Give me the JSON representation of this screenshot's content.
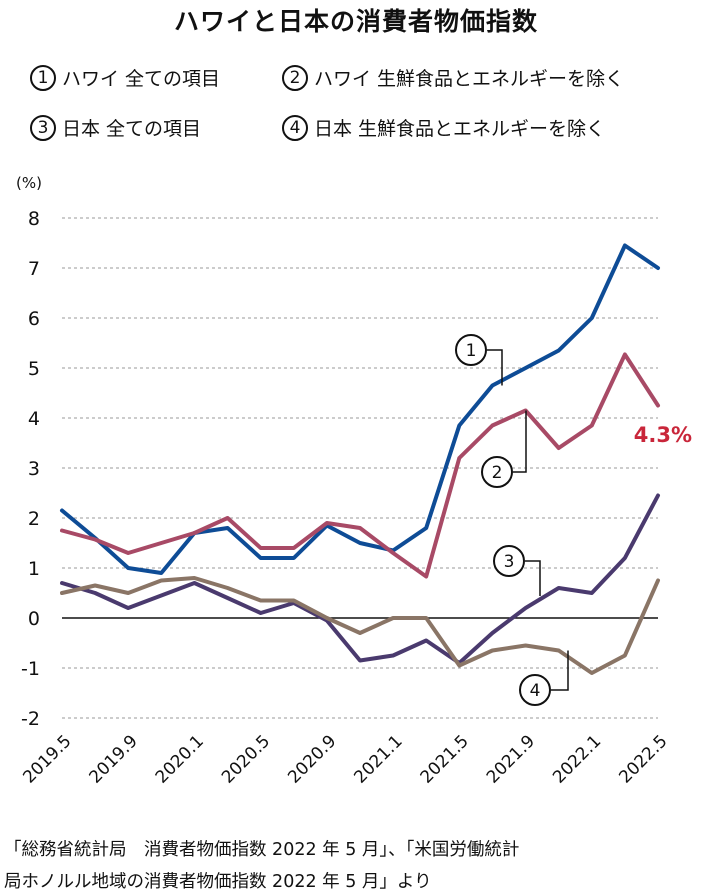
{
  "chart_data": {
    "type": "line",
    "title": "ハワイと日本の消費者物価指数",
    "ylabel": "(%)",
    "ylim": [
      -2,
      8
    ],
    "yticks": [
      "8",
      "7",
      "6",
      "5",
      "4",
      "3",
      "2",
      "1",
      "0",
      "-1",
      "-2"
    ],
    "x_tick_labels": [
      "2019.5",
      "2019.9",
      "2020.1",
      "2020.5",
      "2020.9",
      "2021.1",
      "2021.5",
      "2021.9",
      "2022.1",
      "2022.5"
    ],
    "x_tick_positions": [
      0,
      2,
      4,
      6,
      8,
      10,
      12,
      14,
      16,
      18
    ],
    "grid": "horizontal-dashed",
    "legend": "top",
    "series": [
      {
        "name": "ハワイ 全ての項目",
        "num": "1",
        "color": "#0e4c96",
        "values": [
          2.15,
          1.6,
          1.0,
          0.9,
          1.7,
          1.8,
          1.2,
          1.2,
          1.85,
          1.5,
          1.35,
          1.8,
          3.85,
          4.65,
          5.0,
          5.35,
          6.0,
          7.45,
          7.0
        ]
      },
      {
        "name": "ハワイ 生鮮食品とエネルギーを除く",
        "num": "2",
        "color": "#a84a66",
        "values": [
          1.75,
          1.57,
          1.3,
          1.5,
          1.7,
          2.0,
          1.4,
          1.4,
          1.9,
          1.8,
          1.3,
          0.83,
          3.2,
          3.85,
          4.15,
          3.4,
          3.85,
          5.27,
          4.25
        ]
      },
      {
        "name": "日本 全ての項目",
        "num": "3",
        "color": "#4a3a6e",
        "values": [
          0.7,
          0.5,
          0.2,
          0.45,
          0.7,
          0.4,
          0.1,
          0.3,
          -0.05,
          -0.85,
          -0.75,
          -0.45,
          -0.9,
          -0.3,
          0.2,
          0.6,
          0.5,
          1.2,
          2.45
        ]
      },
      {
        "name": "日本 生鮮食品とエネルギーを除く",
        "num": "4",
        "color": "#8a7566",
        "values": [
          0.5,
          0.65,
          0.5,
          0.75,
          0.8,
          0.6,
          0.35,
          0.35,
          0.0,
          -0.3,
          0.0,
          0.0,
          -0.95,
          -0.65,
          -0.55,
          -0.65,
          -1.1,
          -0.75,
          0.75
        ]
      }
    ],
    "annotations": [
      {
        "text": "4.3%",
        "color": "#c9263a"
      },
      {
        "text": "1"
      },
      {
        "text": "2"
      },
      {
        "text": "3"
      },
      {
        "text": "4"
      }
    ]
  },
  "source_lines": [
    "「総務省統計局　消費者物価指数 2022 年 5 月」、「米国労働統計",
    "局ホノルル地域の消費者物価指数 2022 年 5 月」より"
  ]
}
